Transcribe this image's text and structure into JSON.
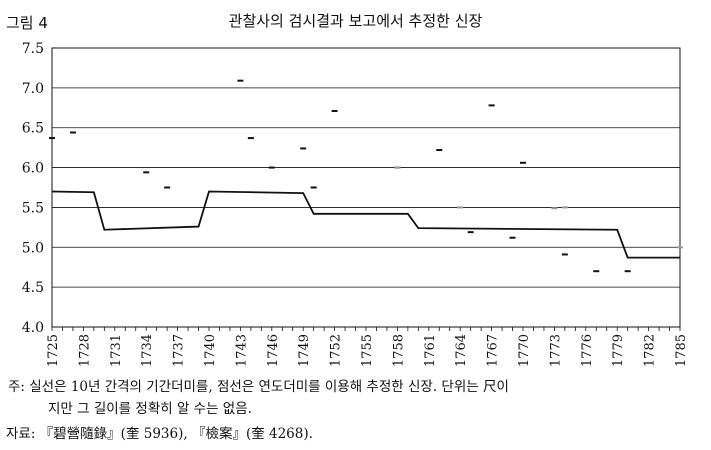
{
  "figure": {
    "label": "그림 4",
    "title": "관찰사의 검시결과 보고에서 추정한 신장",
    "note_prefix": "주:",
    "note_line1": "실선은 10년 간격의 기간더미를, 점선은 연도더미를 이용해 추정한 신장. 단위는 尺이",
    "note_line2": "지만 그 길이를 정확히 알 수는 없음.",
    "source": "자료: 『碧營隨錄』(奎 5936), 『檢案』(奎 4268)."
  },
  "chart_data": {
    "type": "line",
    "xlim": [
      1725,
      1785
    ],
    "ylim": [
      4.0,
      7.5
    ],
    "y_ticks": [
      4.0,
      4.5,
      5.0,
      5.5,
      6.0,
      6.5,
      7.0,
      7.5
    ],
    "x_ticks": [
      1725,
      1728,
      1731,
      1734,
      1737,
      1740,
      1743,
      1746,
      1749,
      1752,
      1755,
      1758,
      1761,
      1764,
      1767,
      1770,
      1773,
      1776,
      1779,
      1782,
      1785
    ],
    "gridlines": "horizontal",
    "series": [
      {
        "style": "solid",
        "color": "#111111",
        "x": [
          1725,
          1729,
          1730,
          1739,
          1740,
          1749,
          1750,
          1759,
          1760,
          1779,
          1780,
          1785
        ],
        "y": [
          5.7,
          5.69,
          5.22,
          5.26,
          5.7,
          5.68,
          5.42,
          5.42,
          5.24,
          5.22,
          4.87,
          4.87
        ]
      },
      {
        "style": "dash",
        "color": "#111111",
        "x": [
          1725,
          1727,
          1734,
          1736,
          1743,
          1744,
          1746,
          1749,
          1750,
          1752,
          1758,
          1762,
          1765,
          1767,
          1770,
          1774,
          1777,
          1780
        ],
        "y": [
          6.37,
          6.44,
          5.94,
          5.75,
          7.09,
          6.37,
          6.0,
          6.24,
          5.75,
          6.71,
          6.0,
          6.22,
          5.19,
          6.78,
          6.06,
          4.91,
          4.7,
          4.7
        ]
      },
      {
        "style": "dash",
        "color": "#999999",
        "x": [
          1758,
          1764,
          1773,
          1774,
          1785
        ],
        "y": [
          6.0,
          5.5,
          5.49,
          5.5,
          5.0
        ]
      },
      {
        "style": "dash",
        "color": "#111111",
        "x": [
          1769
        ],
        "y": [
          5.12
        ]
      }
    ]
  }
}
